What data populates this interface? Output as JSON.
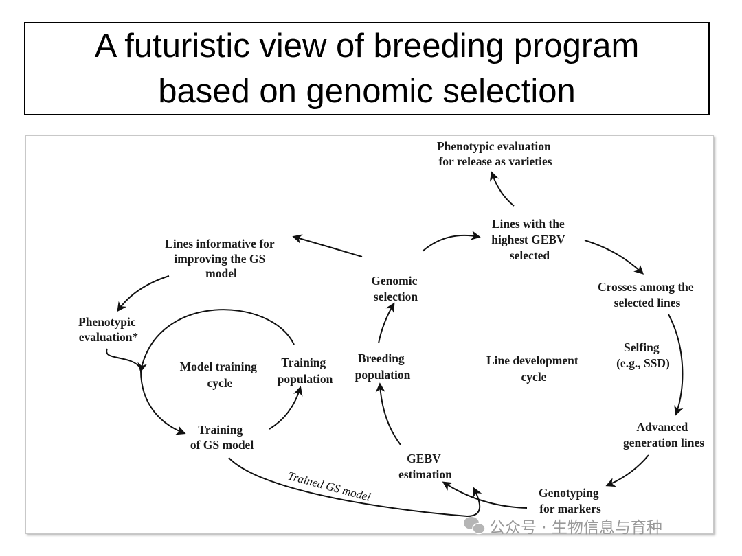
{
  "title": {
    "line1": "A futuristic view of breeding program",
    "line2": "based on genomic selection"
  },
  "diagram": {
    "nodes": {
      "phenotypic_release": [
        "Phenotypic evaluation",
        "for release as varieties"
      ],
      "lines_highest_gebv": [
        "Lines with the",
        "highest GEBV",
        "selected"
      ],
      "lines_informative": [
        "Lines informative for",
        "improving the GS",
        "model"
      ],
      "genomic_selection": [
        "Genomic",
        "selection"
      ],
      "crosses": [
        "Crosses among the",
        "selected lines"
      ],
      "phenotypic_evaluation": [
        "Phenotypic",
        "evaluation*"
      ],
      "selfing": [
        "Selfing",
        "(e.g., SSD)"
      ],
      "model_training_cycle": [
        "Model training",
        "cycle"
      ],
      "training_population": [
        "Training",
        "population"
      ],
      "breeding_population": [
        "Breeding",
        "population"
      ],
      "line_development_cycle": [
        "Line development",
        "cycle"
      ],
      "advanced_generation": [
        "Advanced",
        "generation lines"
      ],
      "training_gs_model": [
        "Training",
        "of GS model"
      ],
      "gebv_estimation": [
        "GEBV",
        "estimation"
      ],
      "genotyping": [
        "Genotyping",
        "for markers"
      ]
    },
    "edge_label": "Trained GS model"
  },
  "watermark": "公众号 · 生物信息与育种"
}
